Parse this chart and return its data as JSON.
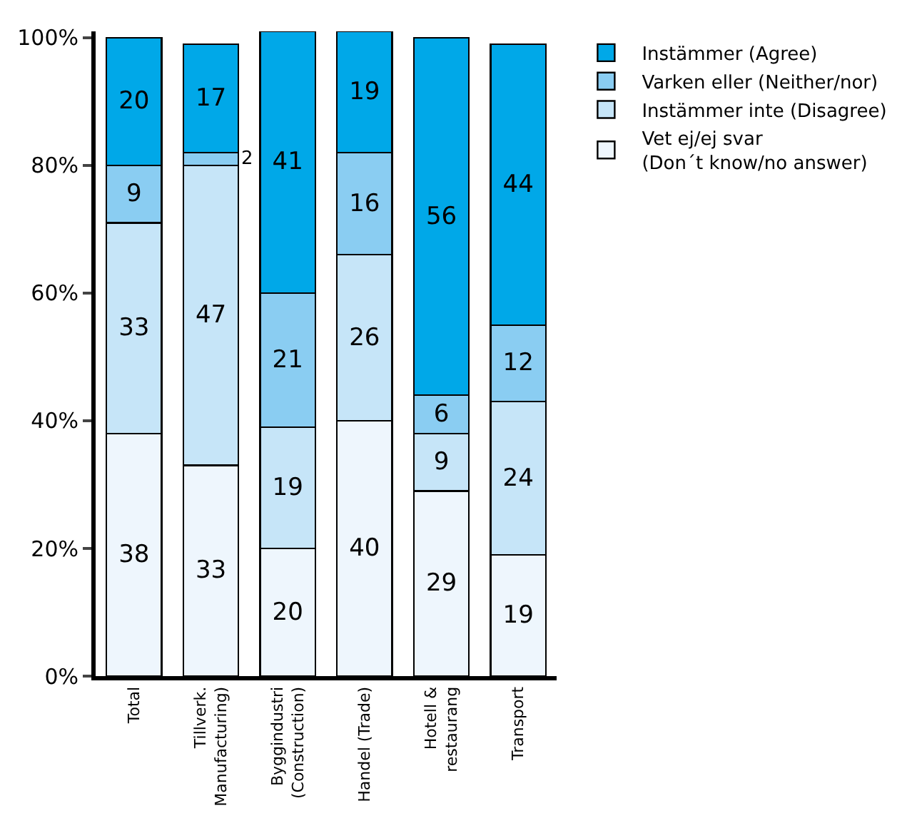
{
  "chart_data": {
    "type": "bar",
    "stacked": true,
    "data_labels": true,
    "legend": "top right",
    "categories": [
      "Total",
      "Tillverk.\nManufacturing)",
      "Byggindustri\n(Construction)",
      "Handel (Trade)",
      "Hotell &\nrestaurang",
      "Transport"
    ],
    "ylim": [
      0,
      101
    ],
    "yticks": [
      {
        "value": 0,
        "label": "0%"
      },
      {
        "value": 20,
        "label": "20%"
      },
      {
        "value": 40,
        "label": "40%"
      },
      {
        "value": 60,
        "label": "60%"
      },
      {
        "value": 80,
        "label": "80%"
      },
      {
        "value": 100,
        "label": "100%"
      }
    ],
    "series": [
      {
        "name": "Vet ej/ej svar\n(Don´t know/no answer)",
        "color": "#eef6fd",
        "values": [
          38,
          33,
          20,
          40,
          29,
          19
        ]
      },
      {
        "name": "Instämmer inte (Disagree)",
        "color": "#c6e5f8",
        "values": [
          33,
          47,
          19,
          26,
          9,
          24
        ]
      },
      {
        "name": "Varken eller (Neither/nor)",
        "color": "#8acdf2",
        "values": [
          9,
          2,
          21,
          16,
          6,
          12
        ]
      },
      {
        "name": "Instämmer (Agree)",
        "color": "#00a8e8",
        "values": [
          20,
          17,
          41,
          19,
          56,
          44
        ]
      }
    ]
  }
}
